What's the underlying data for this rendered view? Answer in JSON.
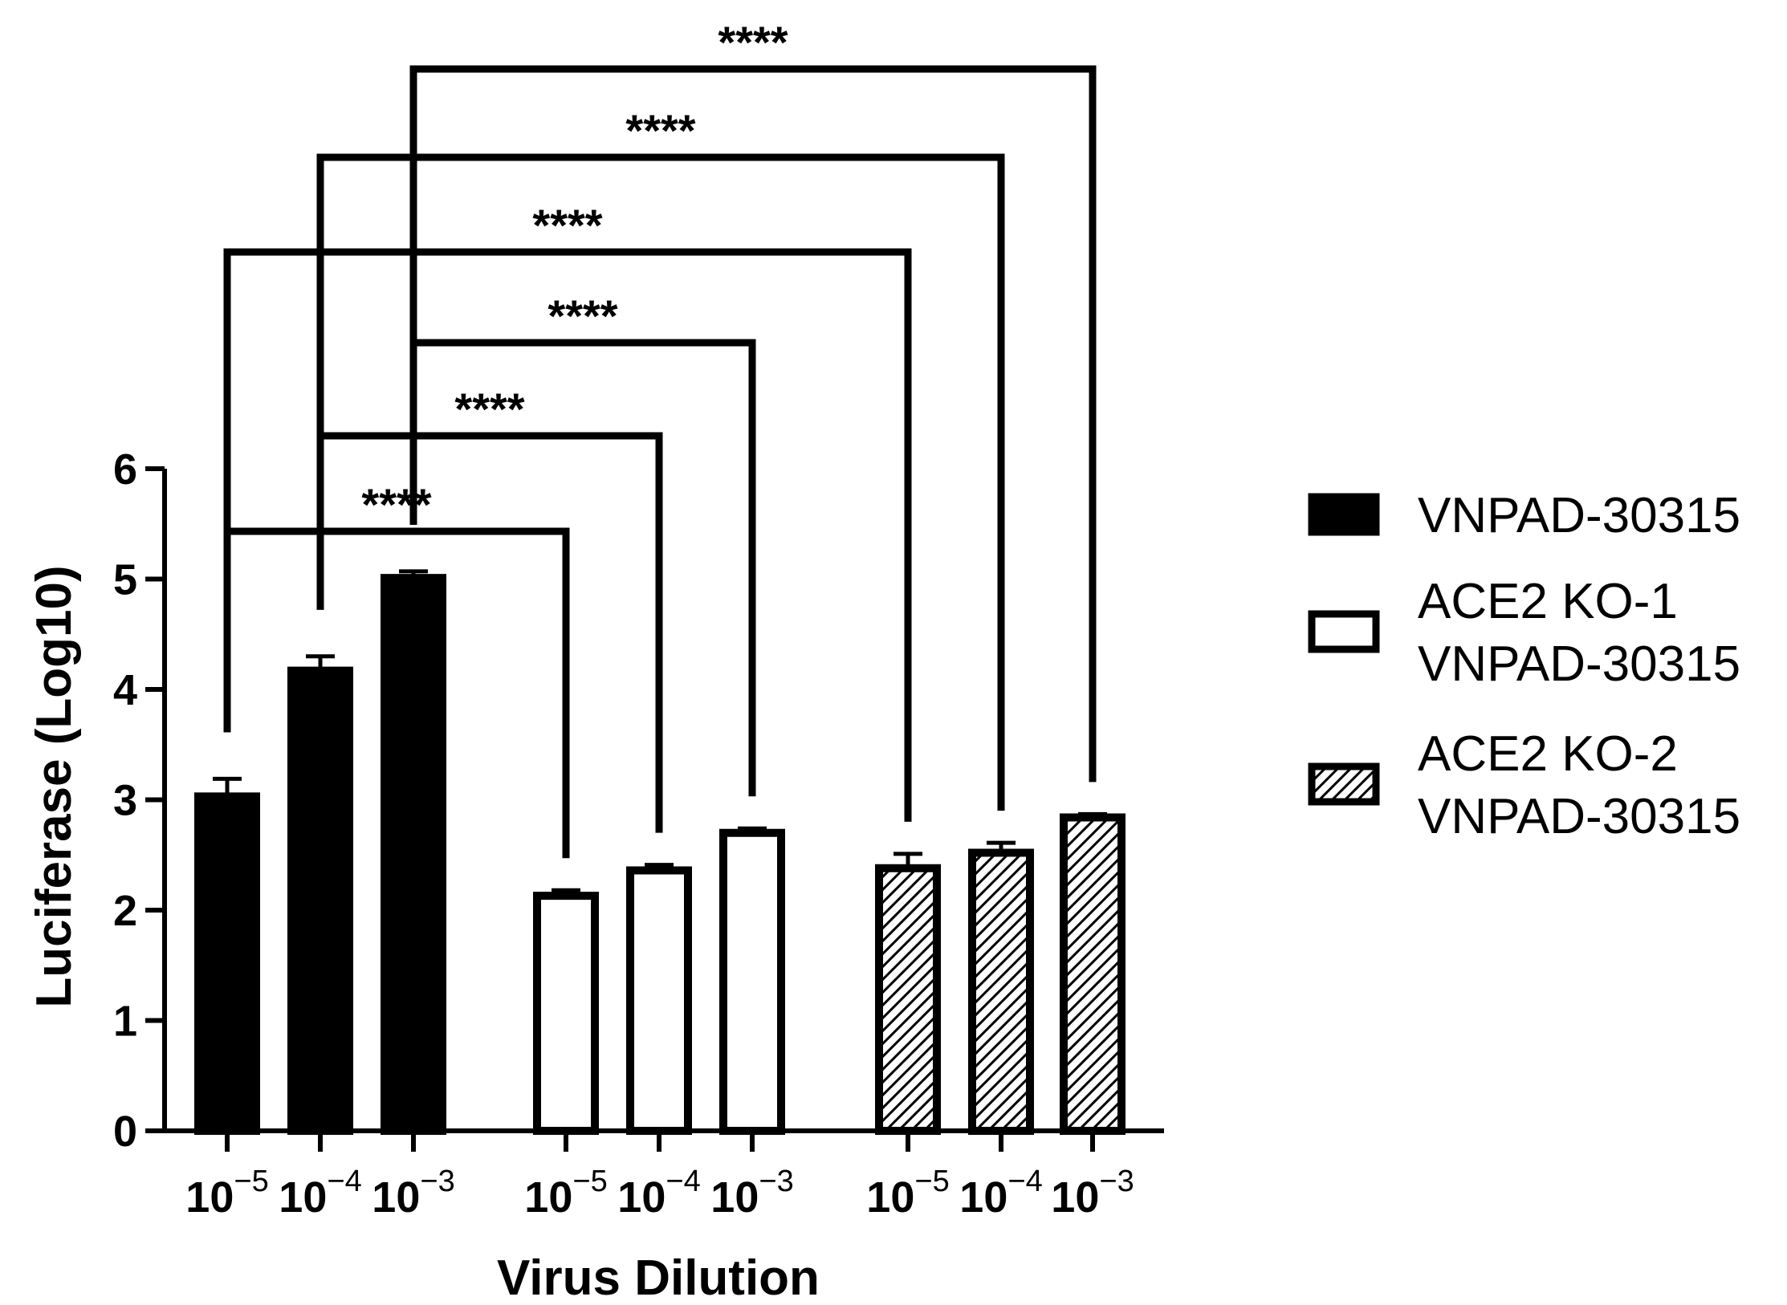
{
  "chart_data": {
    "type": "bar",
    "ylabel": "Luciferase (Log10)",
    "xlabel": "Virus Dilution",
    "ylim": [
      0,
      6
    ],
    "yticks": [
      "0",
      "1",
      "2",
      "3",
      "4",
      "5",
      "6"
    ],
    "tick_base": "10",
    "categories": [
      "−5",
      "−4",
      "−3"
    ],
    "legend_position": "right",
    "series": [
      {
        "name": "VNPAD-30315",
        "fill": "solid",
        "color": "#000000",
        "values": [
          3.03,
          4.17,
          5.01
        ],
        "errors": [
          0.16,
          0.13,
          0.06
        ]
      },
      {
        "name": "ACE2 KO-1 VNPAD-30315",
        "name_lines": [
          "ACE2 KO-1",
          "VNPAD-30315"
        ],
        "fill": "open",
        "color": "#ffffff",
        "values": [
          2.13,
          2.36,
          2.7
        ],
        "errors": [
          0.05,
          0.05,
          0.04
        ]
      },
      {
        "name": "ACE2 KO-2 VNPAD-30315",
        "name_lines": [
          "ACE2 KO-2",
          "VNPAD-30315"
        ],
        "fill": "hatched",
        "color": "#ffffff",
        "values": [
          2.38,
          2.52,
          2.84
        ],
        "errors": [
          0.13,
          0.09,
          0.03
        ]
      }
    ],
    "significance": [
      {
        "label": "****",
        "from": [
          0,
          0
        ],
        "to": [
          1,
          0
        ]
      },
      {
        "label": "****",
        "from": [
          0,
          1
        ],
        "to": [
          1,
          1
        ]
      },
      {
        "label": "****",
        "from": [
          0,
          2
        ],
        "to": [
          1,
          2
        ]
      },
      {
        "label": "****",
        "from": [
          0,
          0
        ],
        "to": [
          2,
          0
        ]
      },
      {
        "label": "****",
        "from": [
          0,
          1
        ],
        "to": [
          2,
          1
        ]
      },
      {
        "label": "****",
        "from": [
          0,
          2
        ],
        "to": [
          2,
          2
        ]
      }
    ]
  }
}
